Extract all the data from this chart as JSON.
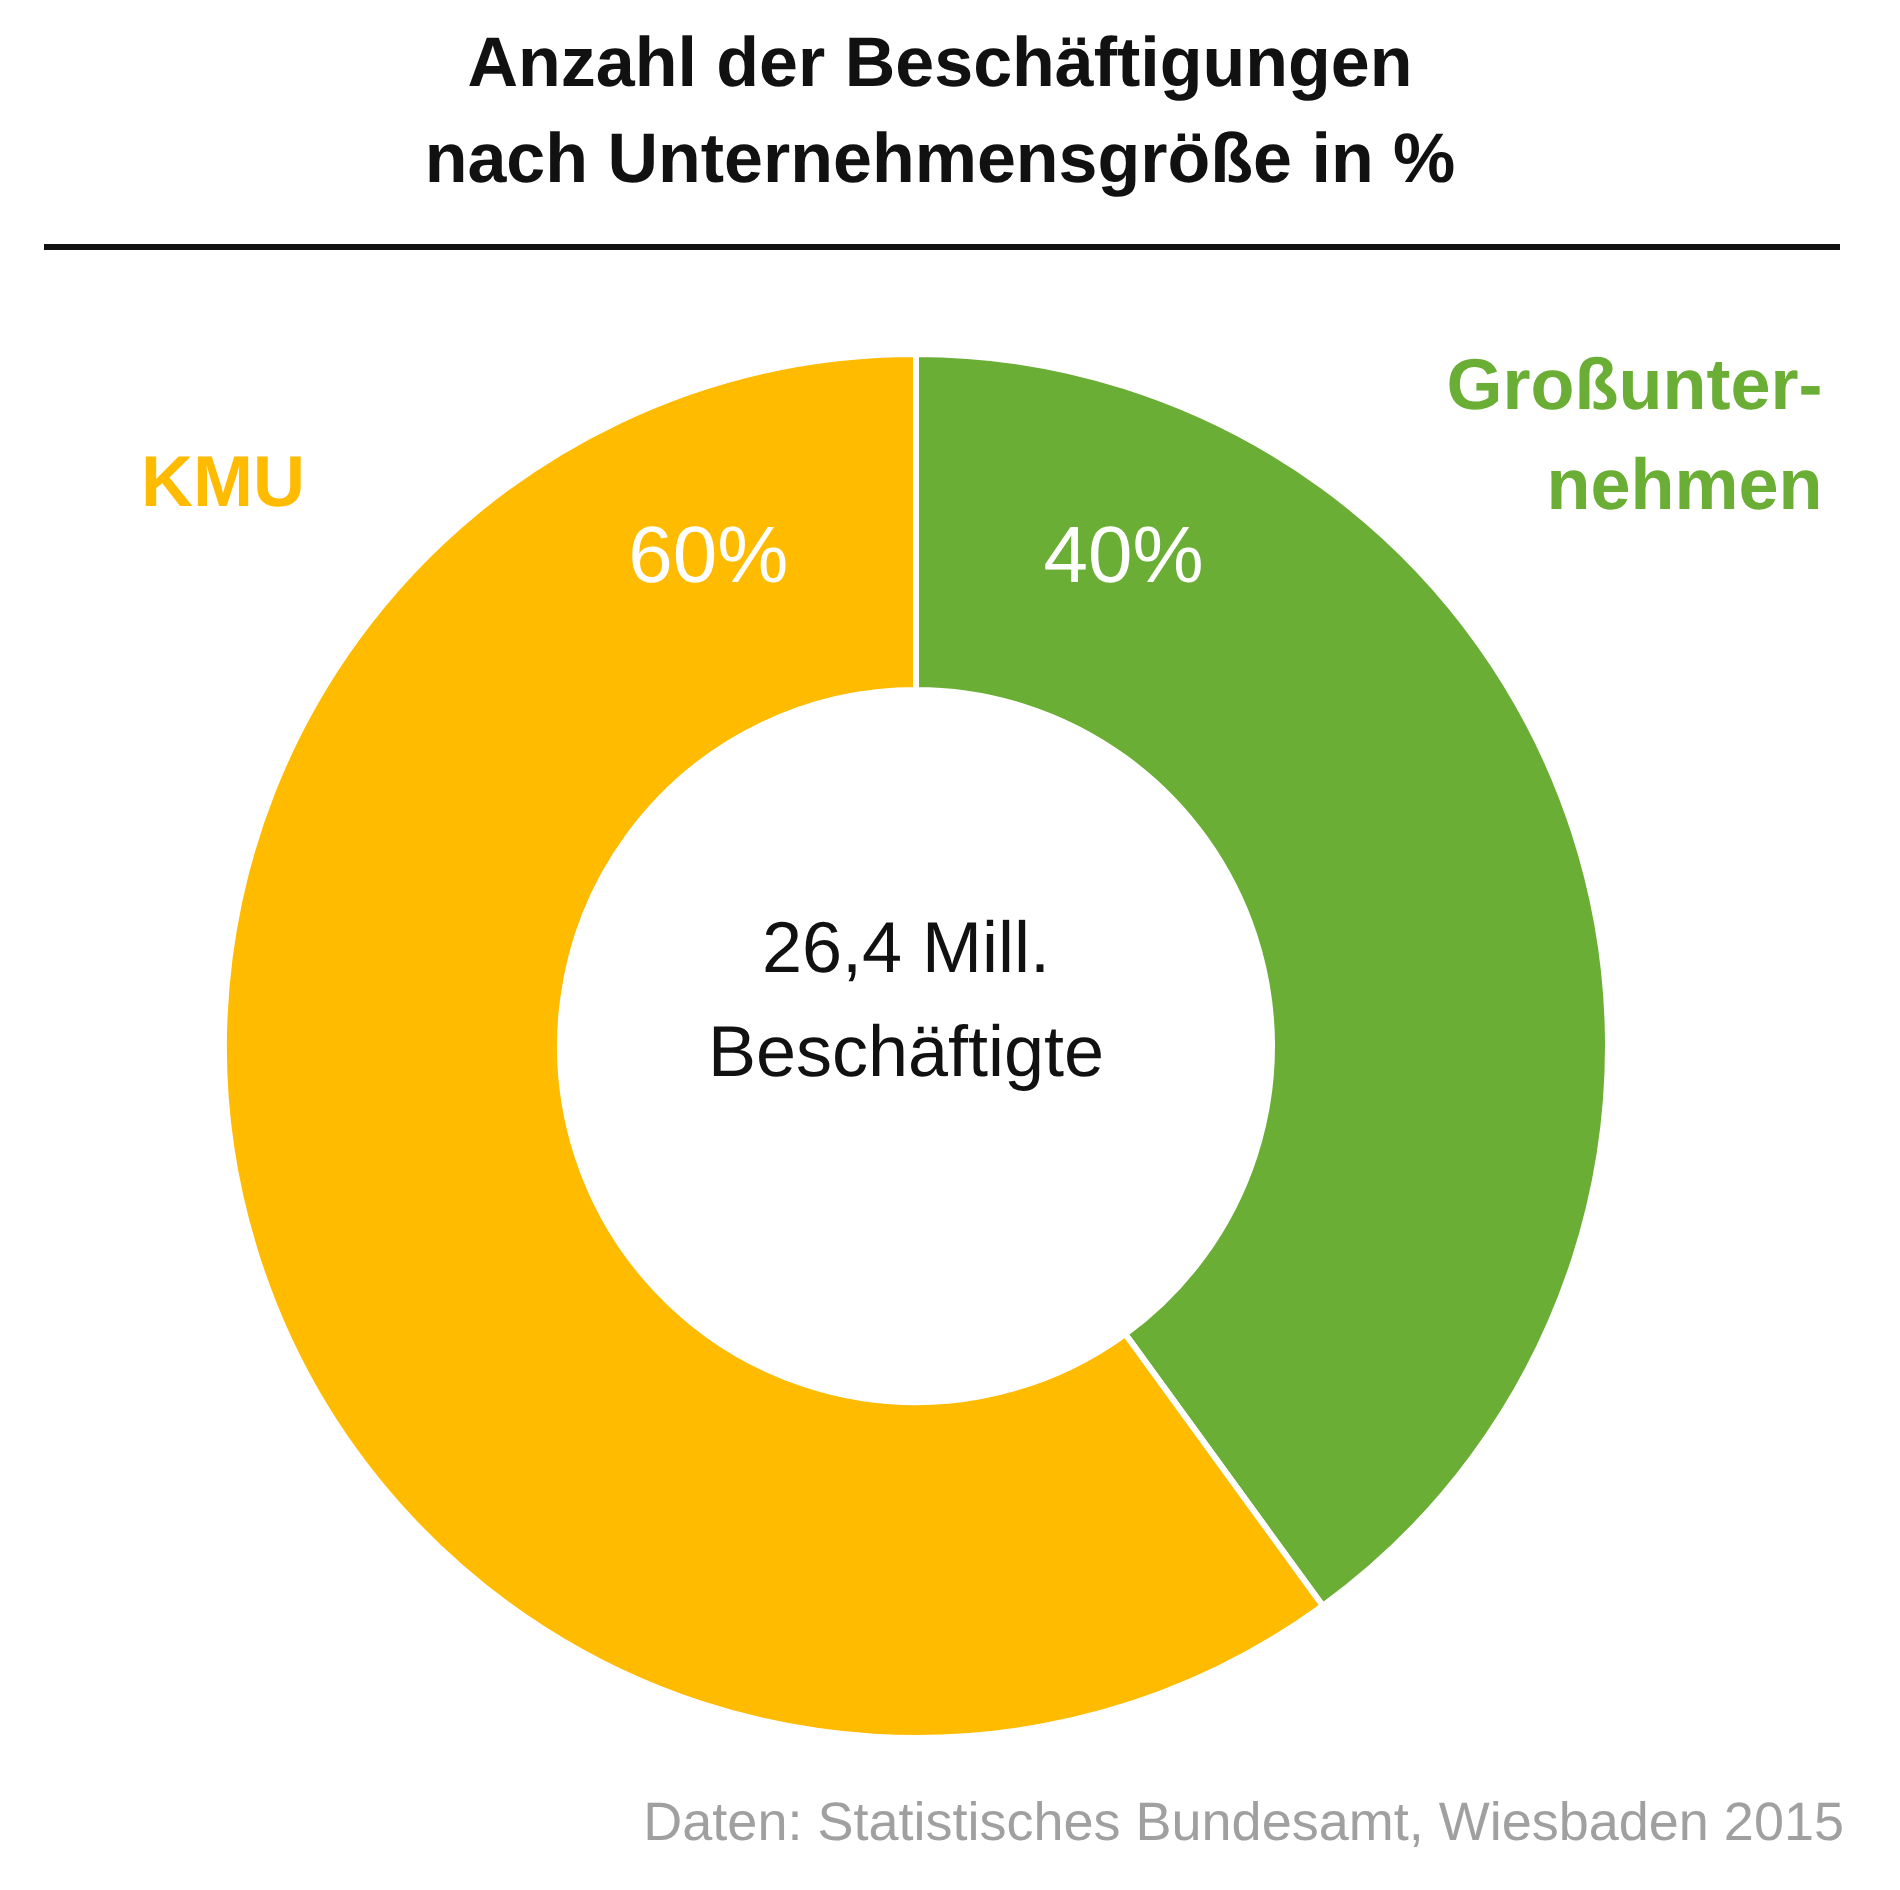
{
  "chart_data": {
    "type": "donut",
    "title": "Anzahl der Beschäftigungen\nnach Unternehmensgröße in %",
    "categories": [
      "Großunter-\nnehmen",
      "KMU"
    ],
    "values": [
      40,
      60
    ],
    "value_labels": [
      "40%",
      "60%"
    ],
    "colors": [
      "#6aae35",
      "#ffbb00"
    ],
    "annotations": [
      "26,4 Mill.\nBeschäftigte",
      "Daten: Statistisches Bundesamt, Wiesbaden 2015"
    ]
  }
}
